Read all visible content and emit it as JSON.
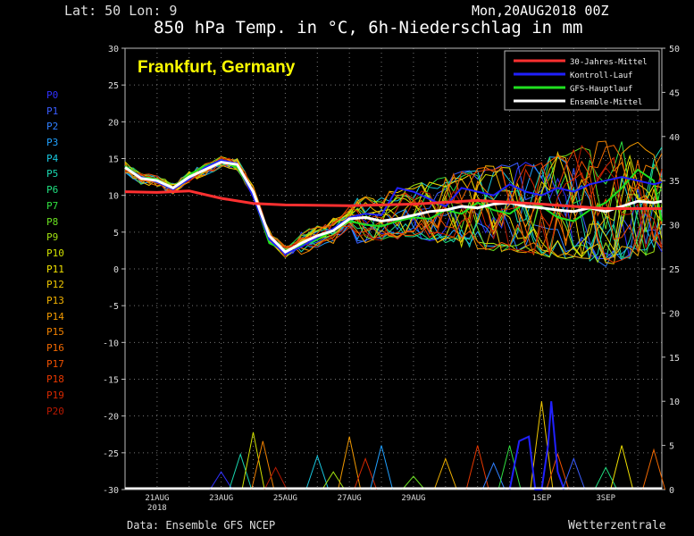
{
  "header": {
    "latlon": "Lat: 50 Lon: 9",
    "date": "Mon,20AUG2018 00Z",
    "title": "850 hPa Temp. in °C, 6h-Niederschlag in mm"
  },
  "footer": {
    "source": "Data: Ensemble GFS NCEP",
    "brand": "Wetterzentrale"
  },
  "ensemble_labels": [
    {
      "name": "P0",
      "color": "#3030ff"
    },
    {
      "name": "P1",
      "color": "#3a5cff"
    },
    {
      "name": "P2",
      "color": "#2f7fff"
    },
    {
      "name": "P3",
      "color": "#20a0ff"
    },
    {
      "name": "P4",
      "color": "#18c8e0"
    },
    {
      "name": "P5",
      "color": "#19d8b0"
    },
    {
      "name": "P6",
      "color": "#20e080"
    },
    {
      "name": "P7",
      "color": "#30e040"
    },
    {
      "name": "P8",
      "color": "#6ae020"
    },
    {
      "name": "P9",
      "color": "#a0e010"
    },
    {
      "name": "P10",
      "color": "#d0e000"
    },
    {
      "name": "P11",
      "color": "#f0e000"
    },
    {
      "name": "P12",
      "color": "#f0c800"
    },
    {
      "name": "P13",
      "color": "#f0b000"
    },
    {
      "name": "P14",
      "color": "#f09800"
    },
    {
      "name": "P15",
      "color": "#f08000"
    },
    {
      "name": "P16",
      "color": "#f06800"
    },
    {
      "name": "P17",
      "color": "#f05000"
    },
    {
      "name": "P18",
      "color": "#e83800"
    },
    {
      "name": "P19",
      "color": "#d82800"
    },
    {
      "name": "P20",
      "color": "#b81800"
    }
  ],
  "chart_data": {
    "type": "line",
    "location": "Frankfurt, Germany",
    "location_color": "#ffff00",
    "left_axis": {
      "min": -30,
      "max": 30,
      "ticks": [
        30,
        25,
        20,
        15,
        10,
        5,
        0,
        -5,
        -10,
        -15,
        -20,
        -25,
        -30
      ]
    },
    "right_axis": {
      "min": 0,
      "max": 50,
      "ticks": [
        50,
        45,
        40,
        35,
        30,
        25,
        20,
        15,
        10,
        5,
        0
      ]
    },
    "x_range_days": [
      20.0,
      36.75
    ],
    "x_ticks": [
      {
        "day": 21,
        "label": "21AUG",
        "sub": "2018"
      },
      {
        "day": 23,
        "label": "23AUG",
        "sub": ""
      },
      {
        "day": 25,
        "label": "25AUG",
        "sub": ""
      },
      {
        "day": 27,
        "label": "27AUG",
        "sub": ""
      },
      {
        "day": 29,
        "label": "29AUG",
        "sub": ""
      },
      {
        "day": 33,
        "label": "1SEP",
        "sub": ""
      },
      {
        "day": 35,
        "label": "3SEP",
        "sub": ""
      }
    ],
    "grid": true,
    "legend_position": "top-right",
    "legend": [
      {
        "name": "30-Jahres-Mittel",
        "color": "#ff3030"
      },
      {
        "name": "Kontroll-Lauf",
        "color": "#2020ff"
      },
      {
        "name": "GFS-Hauptlauf",
        "color": "#20e020"
      },
      {
        "name": "Ensemble-Mittel",
        "color": "#ffffff"
      }
    ],
    "climatology_temp": [
      [
        20,
        10.5
      ],
      [
        21,
        10.4
      ],
      [
        22,
        10.6
      ],
      [
        23,
        9.6
      ],
      [
        24,
        8.9
      ],
      [
        25,
        8.7
      ],
      [
        27,
        8.6
      ],
      [
        29,
        8.8
      ],
      [
        31,
        9.3
      ],
      [
        33,
        8.8
      ],
      [
        35,
        8.2
      ],
      [
        36.75,
        8.2
      ]
    ],
    "mean_temp": [
      [
        20,
        13.8
      ],
      [
        20.5,
        12.3
      ],
      [
        21,
        12.0
      ],
      [
        21.5,
        11.0
      ],
      [
        22,
        12.5
      ],
      [
        22.5,
        13.5
      ],
      [
        23,
        14.5
      ],
      [
        23.5,
        14.2
      ],
      [
        24,
        10.5
      ],
      [
        24.5,
        4.5
      ],
      [
        25,
        2.3
      ],
      [
        25.5,
        3.5
      ],
      [
        26,
        4.5
      ],
      [
        26.5,
        5.2
      ],
      [
        27,
        6.8
      ],
      [
        27.5,
        7.0
      ],
      [
        28,
        6.5
      ],
      [
        28.5,
        6.8
      ],
      [
        29,
        7.3
      ],
      [
        29.5,
        7.8
      ],
      [
        30,
        8.0
      ],
      [
        30.5,
        8.5
      ],
      [
        31,
        8.3
      ],
      [
        31.5,
        8.8
      ],
      [
        32,
        9.0
      ],
      [
        32.5,
        8.5
      ],
      [
        33,
        8.3
      ],
      [
        33.5,
        8.0
      ],
      [
        34,
        7.8
      ],
      [
        34.5,
        8.3
      ],
      [
        35,
        7.8
      ],
      [
        35.5,
        8.5
      ],
      [
        36,
        9.2
      ],
      [
        36.5,
        9.0
      ],
      [
        36.75,
        9.2
      ]
    ],
    "control_temp": [
      [
        20,
        13.8
      ],
      [
        20.5,
        12.5
      ],
      [
        21,
        11.8
      ],
      [
        21.5,
        10.8
      ],
      [
        22,
        12.2
      ],
      [
        22.5,
        13.8
      ],
      [
        23,
        14.8
      ],
      [
        23.5,
        14.3
      ],
      [
        24,
        9.8
      ],
      [
        24.5,
        4.0
      ],
      [
        25,
        2.0
      ],
      [
        25.5,
        3.0
      ],
      [
        26,
        4.3
      ],
      [
        26.5,
        5.5
      ],
      [
        27,
        7.0
      ],
      [
        27.5,
        7.5
      ],
      [
        28,
        7.3
      ],
      [
        28.5,
        11.0
      ],
      [
        29,
        10.5
      ],
      [
        29.5,
        9.5
      ],
      [
        30,
        8.5
      ],
      [
        30.5,
        11.0
      ],
      [
        31,
        10.5
      ],
      [
        31.5,
        10.0
      ],
      [
        32,
        11.5
      ],
      [
        32.5,
        10.5
      ],
      [
        33,
        10.0
      ],
      [
        33.5,
        11.0
      ],
      [
        34,
        10.5
      ],
      [
        34.5,
        11.5
      ],
      [
        35,
        12.0
      ],
      [
        35.5,
        12.5
      ],
      [
        36,
        12.0
      ],
      [
        36.5,
        11.5
      ],
      [
        36.75,
        11.8
      ]
    ],
    "main_temp": [
      [
        20,
        14.0
      ],
      [
        20.5,
        12.5
      ],
      [
        21,
        12.2
      ],
      [
        21.5,
        11.0
      ],
      [
        22,
        12.8
      ],
      [
        22.5,
        14.0
      ],
      [
        23,
        14.7
      ],
      [
        23.5,
        13.8
      ],
      [
        24,
        10.0
      ],
      [
        24.5,
        3.5
      ],
      [
        25,
        2.5
      ],
      [
        25.5,
        3.2
      ],
      [
        26,
        4.0
      ],
      [
        26.5,
        5.2
      ],
      [
        27,
        6.5
      ],
      [
        27.5,
        6.0
      ],
      [
        28,
        5.8
      ],
      [
        28.5,
        6.5
      ],
      [
        29,
        7.0
      ],
      [
        29.5,
        6.8
      ],
      [
        30,
        8.0
      ],
      [
        30.5,
        7.5
      ],
      [
        31,
        9.0
      ],
      [
        31.5,
        8.0
      ],
      [
        32,
        7.5
      ],
      [
        32.5,
        9.0
      ],
      [
        33,
        8.5
      ],
      [
        33.5,
        7.0
      ],
      [
        34,
        6.5
      ],
      [
        34.5,
        8.0
      ],
      [
        35,
        9.0
      ],
      [
        35.5,
        11.0
      ],
      [
        36,
        13.5
      ],
      [
        36.5,
        12.0
      ],
      [
        36.75,
        6.5
      ]
    ],
    "member_spread_end": [
      [
        27,
        3.8,
        9.0
      ],
      [
        29,
        4.5,
        11.0
      ],
      [
        31,
        3.0,
        13.5
      ],
      [
        33,
        2.0,
        15.0
      ],
      [
        35,
        0.5,
        17.5
      ],
      [
        36.75,
        2.5,
        17.0
      ]
    ],
    "precip_peaks": [
      {
        "day": 23.0,
        "mm": 2.0
      },
      {
        "day": 23.6,
        "mm": 4.0
      },
      {
        "day": 24.0,
        "mm": 6.5
      },
      {
        "day": 24.3,
        "mm": 5.5
      },
      {
        "day": 24.7,
        "mm": 2.5
      },
      {
        "day": 26.0,
        "mm": 3.8
      },
      {
        "day": 26.5,
        "mm": 2.0
      },
      {
        "day": 27.0,
        "mm": 6.0
      },
      {
        "day": 27.5,
        "mm": 3.5
      },
      {
        "day": 28.0,
        "mm": 5.0
      },
      {
        "day": 29.0,
        "mm": 1.5
      },
      {
        "day": 30.0,
        "mm": 3.5
      },
      {
        "day": 31.0,
        "mm": 5.0
      },
      {
        "day": 31.5,
        "mm": 3.0
      },
      {
        "day": 32.0,
        "mm": 5.0
      },
      {
        "day": 33.0,
        "mm": 10.0
      },
      {
        "day": 33.5,
        "mm": 4.0
      },
      {
        "day": 34.0,
        "mm": 3.5
      },
      {
        "day": 35.0,
        "mm": 2.5
      },
      {
        "day": 35.5,
        "mm": 5.0
      },
      {
        "day": 36.5,
        "mm": 4.5
      }
    ],
    "control_precip": [
      [
        32.0,
        0
      ],
      [
        32.3,
        5.5
      ],
      [
        32.6,
        6.0
      ],
      [
        32.8,
        0
      ],
      [
        33.0,
        0
      ],
      [
        33.2,
        5.0
      ],
      [
        33.3,
        10.0
      ],
      [
        33.5,
        2.0
      ],
      [
        33.7,
        0
      ]
    ]
  }
}
